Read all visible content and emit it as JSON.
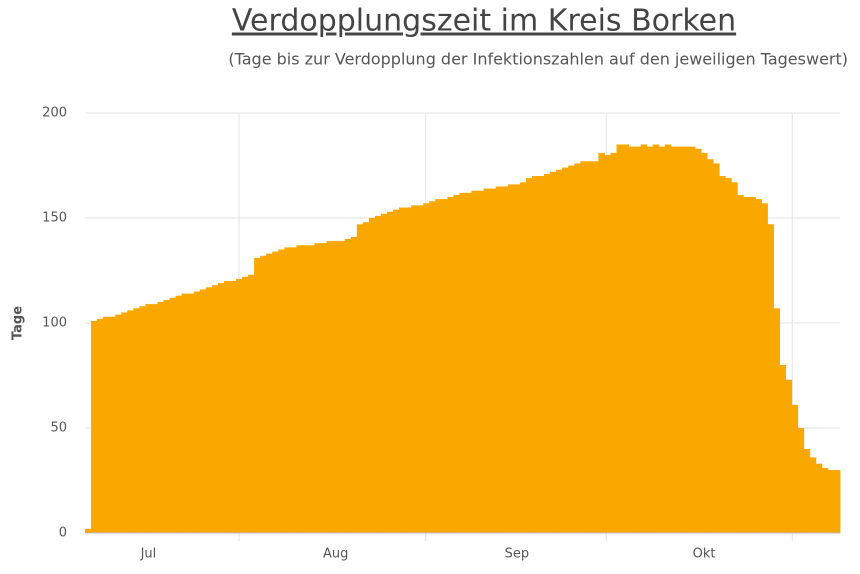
{
  "chart_data": {
    "type": "bar",
    "title": "Verdopplungszeit im Kreis Borken",
    "subtitle": "(Tage bis zur Verdopplung der Infektionszahlen auf den jeweiligen Tageswert)",
    "y_label": "Tage",
    "color": "#faa700",
    "grid": true,
    "ylim": [
      0,
      200
    ],
    "yticks": [
      0,
      50,
      100,
      150,
      200
    ],
    "categories": [
      null,
      null,
      null,
      null,
      null,
      null,
      null,
      null,
      null,
      null,
      "Jul",
      null,
      null,
      null,
      null,
      null,
      null,
      null,
      null,
      null,
      null,
      null,
      null,
      null,
      null,
      null,
      null,
      null,
      null,
      null,
      null,
      null,
      null,
      null,
      null,
      null,
      null,
      null,
      null,
      null,
      null,
      "Aug",
      null,
      null,
      null,
      null,
      null,
      null,
      null,
      null,
      null,
      null,
      null,
      null,
      null,
      null,
      null,
      null,
      null,
      null,
      null,
      null,
      null,
      null,
      null,
      null,
      null,
      null,
      null,
      null,
      null,
      "Sep",
      null,
      null,
      null,
      null,
      null,
      null,
      null,
      null,
      null,
      null,
      null,
      null,
      null,
      null,
      null,
      null,
      null,
      null,
      null,
      null,
      null,
      null,
      null,
      null,
      null,
      null,
      null,
      null,
      null,
      null,
      "Okt",
      null,
      null,
      null,
      null,
      null,
      null,
      null,
      null,
      null,
      null,
      null,
      null,
      null,
      null,
      null,
      null,
      null,
      null,
      null,
      null,
      null,
      null
    ],
    "values": [
      2,
      101,
      102,
      103,
      103,
      104,
      105,
      106,
      107,
      108,
      109,
      109,
      110,
      111,
      112,
      113,
      114,
      114,
      115,
      116,
      117,
      118,
      119,
      120,
      120,
      121,
      122,
      123,
      131,
      132,
      133,
      134,
      135,
      136,
      136,
      137,
      137,
      137,
      138,
      138,
      139,
      139,
      139,
      140,
      141,
      147,
      148,
      150,
      151,
      152,
      153,
      154,
      155,
      155,
      156,
      156,
      157,
      158,
      159,
      159,
      160,
      161,
      162,
      162,
      163,
      163,
      164,
      164,
      165,
      165,
      166,
      166,
      167,
      169,
      170,
      170,
      171,
      172,
      173,
      174,
      175,
      176,
      177,
      177,
      177,
      181,
      180,
      181,
      185,
      185,
      184,
      184,
      185,
      184,
      185,
      184,
      185,
      184,
      184,
      184,
      184,
      183,
      181,
      178,
      176,
      170,
      169,
      167,
      161,
      160,
      160,
      159,
      157,
      147,
      107,
      80,
      73,
      61,
      50,
      40,
      36,
      33,
      31,
      30,
      30
    ]
  }
}
